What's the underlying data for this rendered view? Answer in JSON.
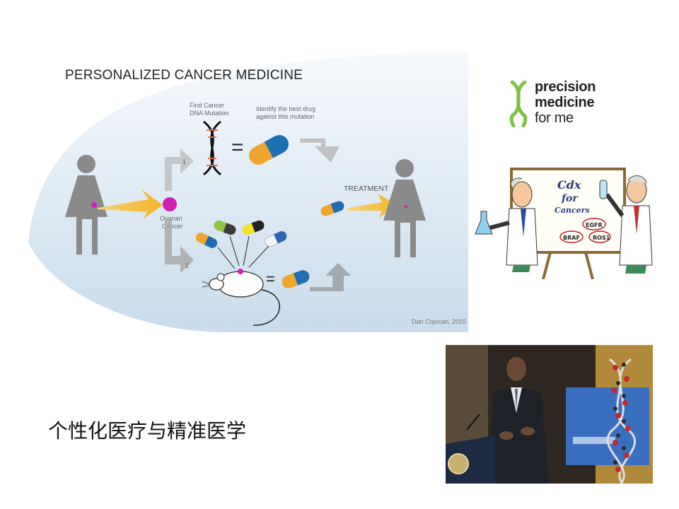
{
  "infographic": {
    "title": "PERSONALIZED CANCER MEDICINE",
    "find_mutation_line1": "Find Cancer",
    "find_mutation_line2": "DNA Mutation",
    "identify_drug_line1": "Identify the best drug",
    "identify_drug_line2": "against this mutation",
    "ovarian_line1": "Ovarian",
    "ovarian_line2": "Cancer",
    "treatment": "TREATMENT",
    "step1": "1",
    "step2": "2",
    "credit": "Dan Cojocari, 2015",
    "equals1": "=",
    "equals2": "="
  },
  "logo": {
    "line1": "precision",
    "line2": "medicine",
    "line3": "for me",
    "color_green": "#7cc142"
  },
  "cartoon": {
    "board_title_line1": "Cdx",
    "board_title_line2": "for",
    "board_title_line3": "Cancers",
    "gene1": "EGFR",
    "gene2": "BRAF",
    "gene3": "ROS1"
  },
  "caption": "个性化医疗与精准医学",
  "colors": {
    "panel_bg": "#d3e4f1",
    "arrow_yellow": "#f2bc2e",
    "magenta": "#d21fb5",
    "figure_gray": "#8c8c8c"
  }
}
